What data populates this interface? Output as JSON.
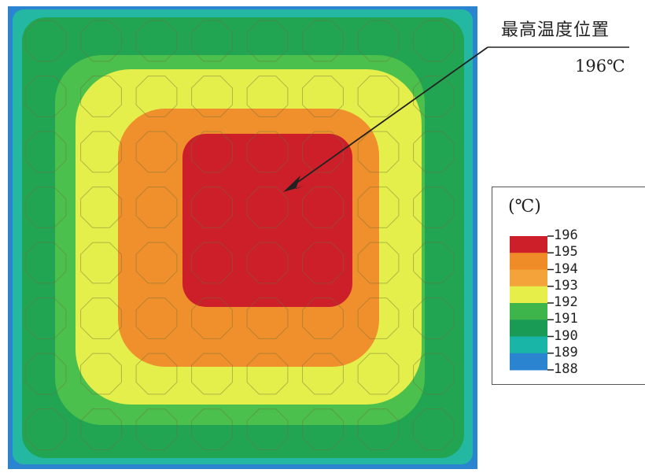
{
  "annotation": {
    "title": "最高温度位置",
    "value": "196℃"
  },
  "legend": {
    "unit": "(℃)",
    "levels": [
      {
        "label": "196",
        "color": "#cc1f2a"
      },
      {
        "label": "195",
        "color": "#f08c28"
      },
      {
        "label": "194",
        "color": "#f4a23a"
      },
      {
        "label": "193",
        "color": "#e6ee4a"
      },
      {
        "label": "192",
        "color": "#3db54a"
      },
      {
        "label": "191",
        "color": "#1a9b55"
      },
      {
        "label": "190",
        "color": "#19b5a6"
      },
      {
        "label": "189",
        "color": "#2a84d0"
      },
      {
        "label": "188",
        "color": "#1a3fa0"
      }
    ]
  },
  "field": {
    "grid_rows": 8,
    "grid_cols": 8,
    "max_temperature": 196,
    "min_temperature": 188
  },
  "colors": {
    "red": "#cc1f2a",
    "orange": "#f0902c",
    "yellow": "#e4ef4c",
    "light_green": "#4bc04c",
    "green": "#22a552",
    "teal": "#24b8a3",
    "blue": "#2a84d0",
    "outline": "#6f6f3a",
    "arrow": "#222222"
  }
}
